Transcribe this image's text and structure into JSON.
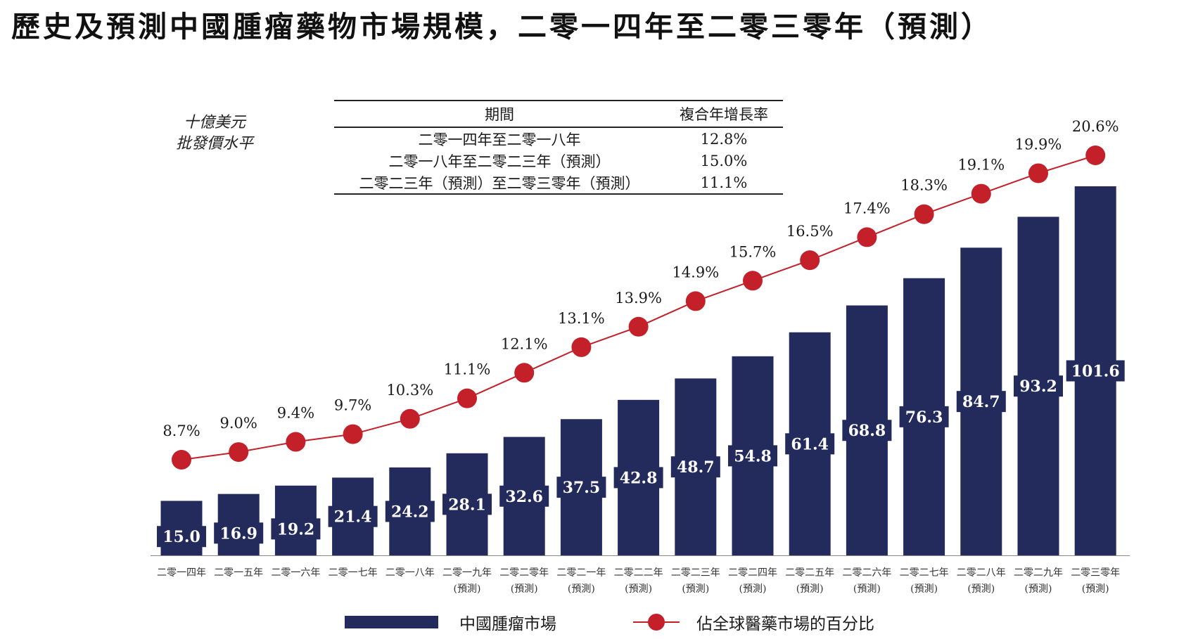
{
  "title": "歷史及預測中國腫瘤藥物市場規模，二零一四年至二零三零年（預測）",
  "unit_label": [
    "十億美元",
    "批發價水平"
  ],
  "cagr_table": {
    "headers": [
      "期間",
      "複合年增長率"
    ],
    "rows": [
      {
        "period": "二零一四年至二零一八年",
        "cagr": "12.8%"
      },
      {
        "period": "二零一八年至二零二三年（預測）",
        "cagr": "15.0%"
      },
      {
        "period": "二零二三年（預測）至二零三零年（預測）",
        "cagr": "11.1%"
      }
    ]
  },
  "legend": {
    "bar": "中國腫瘤市場",
    "line": "佔全球醫藥市場的百分比"
  },
  "colors": {
    "bar": "#232a5c",
    "line": "#c4202a",
    "label_text": "#ffffff"
  },
  "chart_data": {
    "type": "bar",
    "title": "歷史及預測中國腫瘤藥物市場規模，二零一四年至二零三零年（預測）",
    "ylabel": "十億美元 批發價水平",
    "categories": [
      [
        "二零一四年"
      ],
      [
        "二零一五年"
      ],
      [
        "二零一六年"
      ],
      [
        "二零一七年"
      ],
      [
        "二零一八年"
      ],
      [
        "二零一九年",
        "(預測)"
      ],
      [
        "二零二零年",
        "(預測)"
      ],
      [
        "二零二一年",
        "(預測)"
      ],
      [
        "二零二二年",
        "(預測)"
      ],
      [
        "二零二三年",
        "(預測)"
      ],
      [
        "二零二四年",
        "(預測)"
      ],
      [
        "二零二五年",
        "(預測)"
      ],
      [
        "二零二六年",
        "(預測)"
      ],
      [
        "二零二七年",
        "(預測)"
      ],
      [
        "二零二八年",
        "(預測)"
      ],
      [
        "二零二九年",
        "(預測)"
      ],
      [
        "二零三零年",
        "(預測)"
      ]
    ],
    "series": [
      {
        "name": "中國腫瘤市場",
        "type": "bar",
        "values": [
          15.0,
          16.9,
          19.2,
          21.4,
          24.2,
          28.1,
          32.6,
          37.5,
          42.8,
          48.7,
          54.8,
          61.4,
          68.8,
          76.3,
          84.7,
          93.2,
          101.6
        ],
        "labels": [
          "15.0",
          "16.9",
          "19.2",
          "21.4",
          "24.2",
          "28.1",
          "32.6",
          "37.5",
          "42.8",
          "48.7",
          "54.8",
          "61.4",
          "68.8",
          "76.3",
          "84.7",
          "93.2",
          "101.6"
        ]
      },
      {
        "name": "佔全球醫藥市場的百分比",
        "type": "line",
        "values": [
          8.7,
          9.0,
          9.4,
          9.7,
          10.3,
          11.1,
          12.1,
          13.1,
          13.9,
          14.9,
          15.7,
          16.5,
          17.4,
          18.3,
          19.1,
          19.9,
          20.6
        ],
        "labels": [
          "8.7%",
          "9.0%",
          "9.4%",
          "9.7%",
          "10.3%",
          "11.1%",
          "12.1%",
          "13.1%",
          "13.9%",
          "14.9%",
          "15.7%",
          "16.5%",
          "17.4%",
          "18.3%",
          "19.1%",
          "19.9%",
          "20.6%"
        ]
      }
    ],
    "ylim": [
      0,
      101.6
    ],
    "line_ylim": [
      8.7,
      20.6
    ],
    "grid": false,
    "legend_position": "bottom"
  }
}
